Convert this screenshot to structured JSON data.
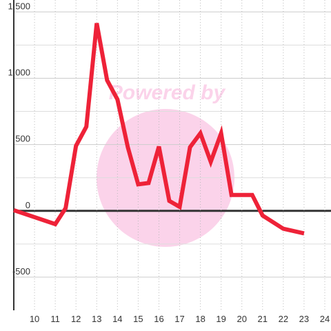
{
  "chart_data": {
    "type": "line",
    "watermark": "Powered by",
    "x": [
      9,
      11,
      11.5,
      12,
      12.5,
      13,
      13.5,
      14,
      14.5,
      15,
      15.5,
      16,
      16.5,
      17,
      17.5,
      18,
      18.5,
      19,
      19.5,
      20,
      20.5,
      21,
      22,
      23
    ],
    "series": [
      {
        "color": "#ee2238",
        "values": [
          5,
          -100,
          20,
          490,
          635,
          1415,
          985,
          840,
          480,
          200,
          210,
          485,
          75,
          30,
          480,
          585,
          370,
          585,
          120,
          120,
          120,
          -35,
          -135,
          -170
        ]
      }
    ],
    "xlim": [
      9,
      24.3
    ],
    "xticks": [
      10,
      11,
      12,
      13,
      14,
      15,
      16,
      17,
      18,
      19,
      20,
      21,
      22,
      23,
      24
    ],
    "ylim": [
      -750,
      1590
    ],
    "yticks": [
      -500,
      0,
      500,
      {
        "value": 1000,
        "label": "1,000"
      },
      {
        "value": 1500,
        "label": "1,500"
      }
    ],
    "minor_yticks": [
      -250,
      250,
      750,
      1250
    ],
    "grid": true
  }
}
